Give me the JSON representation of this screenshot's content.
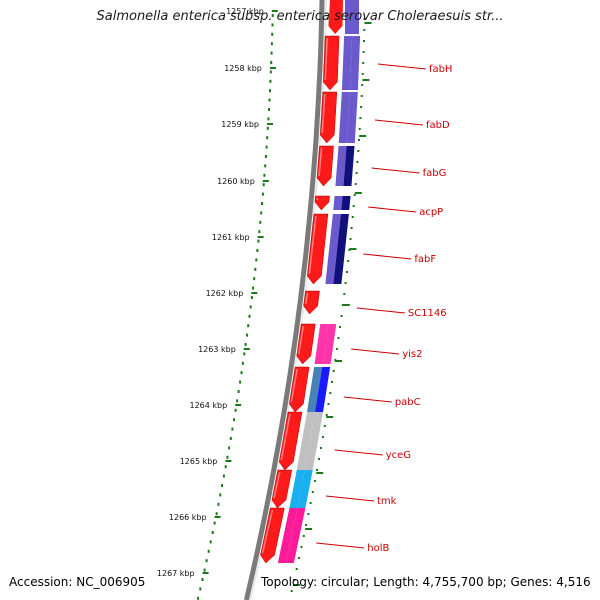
{
  "title": "Salmonella enterica subsp. enterica serovar Choleraesuis str...",
  "footer": {
    "accession": "Accession: NC_006905",
    "topology": "Topology: circular; Length: 4,755,700 bp; Genes: 4,516"
  },
  "colors": {
    "backbone": "#7a7a7a",
    "tick": "#1a7a1a",
    "gene_red": "#ff1a1a",
    "label": "#cc0000",
    "cog_purple": "#6a5acd",
    "cog_navy": "#10107a",
    "cog_pink": "#ff33aa",
    "cog_blue": "#1a1aff",
    "cog_steel": "#4682b4",
    "cog_grey": "#c0c0c0",
    "cog_cyan": "#1ab0f0",
    "cog_magenta": "#ff1a9a"
  },
  "ticks": [
    "1257 kbp",
    "1258 kbp",
    "1259 kbp",
    "1260 kbp",
    "1261 kbp",
    "1262 kbp",
    "1263 kbp",
    "1264 kbp",
    "1265 kbp",
    "1266 kbp",
    "1267 kbp"
  ],
  "genes": [
    {
      "label": "fabH",
      "cog": [
        "cog_purple",
        "cog_purple"
      ]
    },
    {
      "label": "fabD",
      "cog": [
        "cog_purple",
        "cog_purple"
      ]
    },
    {
      "label": "fabG",
      "cog": [
        "cog_purple",
        "cog_navy"
      ]
    },
    {
      "label": "acpP",
      "cog": [
        "cog_purple",
        "cog_navy"
      ]
    },
    {
      "label": "fabF",
      "cog": [
        "cog_purple",
        "cog_navy"
      ]
    },
    {
      "label": "SC1146",
      "cog": []
    },
    {
      "label": "yis2",
      "cog": [
        "cog_pink",
        "cog_pink"
      ]
    },
    {
      "label": "pabC",
      "cog": [
        "cog_steel",
        "cog_blue"
      ]
    },
    {
      "label": "yceG",
      "cog": [
        "cog_grey",
        "cog_grey"
      ]
    },
    {
      "label": "tmk",
      "cog": [
        "cog_cyan",
        "cog_cyan"
      ]
    },
    {
      "label": "holB",
      "cog": [
        "cog_magenta",
        "cog_magenta"
      ]
    }
  ]
}
